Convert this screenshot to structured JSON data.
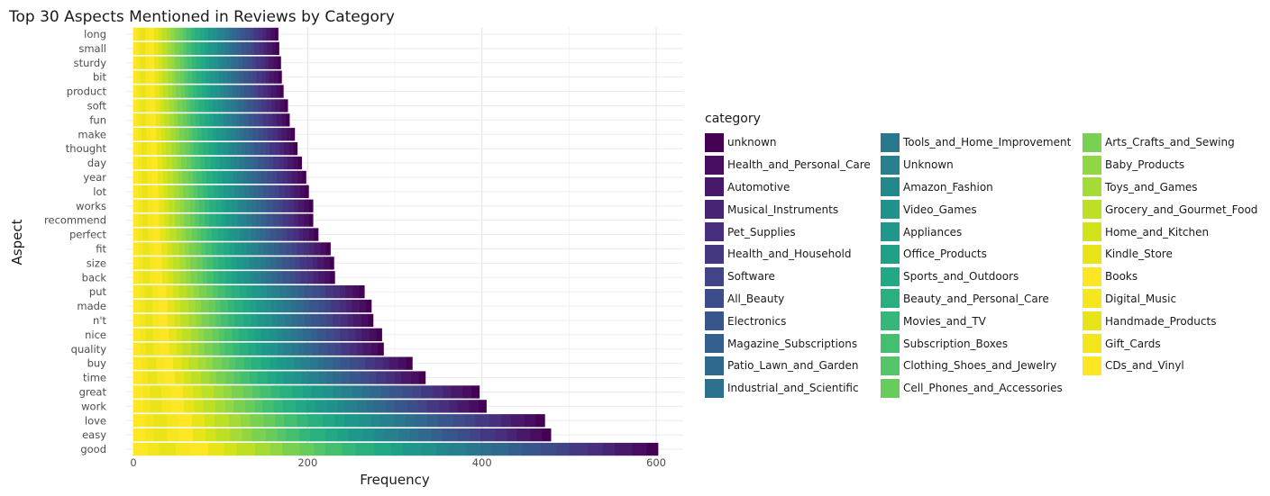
{
  "chart_data": {
    "type": "bar",
    "orientation": "horizontal",
    "stacked": true,
    "title": "Top 30 Aspects Mentioned in Reviews by Category",
    "xlabel": "Frequency",
    "ylabel": "Aspect",
    "xlim": [
      0,
      630
    ],
    "xticks": [
      0,
      200,
      400,
      600
    ],
    "grid": true,
    "legend_title": "category",
    "legend_position": "right",
    "categories": [
      "long",
      "small",
      "sturdy",
      "bit",
      "product",
      "soft",
      "fun",
      "make",
      "thought",
      "day",
      "year",
      "lot",
      "works",
      "recommend",
      "perfect",
      "fit",
      "size",
      "back",
      "put",
      "made",
      "n't",
      "nice",
      "quality",
      "buy",
      "time",
      "great",
      "work",
      "love",
      "easy",
      "good"
    ],
    "totals": [
      166,
      167,
      169,
      170,
      172,
      177,
      179,
      185,
      188,
      193,
      198,
      201,
      206,
      206,
      212,
      226,
      230,
      231,
      265,
      273,
      275,
      285,
      287,
      320,
      335,
      397,
      405,
      472,
      479,
      602
    ],
    "series_names": [
      "unknown",
      "Health_and_Personal_Care",
      "Automotive",
      "Musical_Instruments",
      "Pet_Supplies",
      "Health_and_Household",
      "Software",
      "All_Beauty",
      "Electronics",
      "Magazine_Subscriptions",
      "Patio_Lawn_and_Garden",
      "Industrial_and_Scientific",
      "Tools_and_Home_Improvement",
      "Unknown",
      "Amazon_Fashion",
      "Video_Games",
      "Appliances",
      "Office_Products",
      "Sports_and_Outdoors",
      "Beauty_and_Personal_Care",
      "Movies_and_TV",
      "Subscription_Boxes",
      "Clothing_Shoes_and_Jewelry",
      "Cell_Phones_and_Accessories",
      "Arts_Crafts_and_Sewing",
      "Baby_Products",
      "Toys_and_Games",
      "Grocery_and_Gourmet_Food",
      "Home_and_Kitchen",
      "Kindle_Store",
      "Books",
      "Digital_Music",
      "Handmade_Products",
      "Gift_Cards",
      "CDs_and_Vinyl"
    ],
    "series_colors": [
      "#440154",
      "#470d60",
      "#48196b",
      "#482475",
      "#472f7d",
      "#453882",
      "#414487",
      "#3d4d8a",
      "#39568c",
      "#355f8d",
      "#31688e",
      "#2d708e",
      "#2a788e",
      "#27808e",
      "#23888e",
      "#21918c",
      "#1f988b",
      "#1fa188",
      "#22a884",
      "#2ab07f",
      "#35b779",
      "#44bf70",
      "#54c568",
      "#67cc5c",
      "#7ad151",
      "#90d743",
      "#a5db36",
      "#bddf26",
      "#d2e21b",
      "#e7e419",
      "#fde725",
      "#f6e620",
      "#e8e419",
      "#f3e51e",
      "#fde725"
    ]
  }
}
